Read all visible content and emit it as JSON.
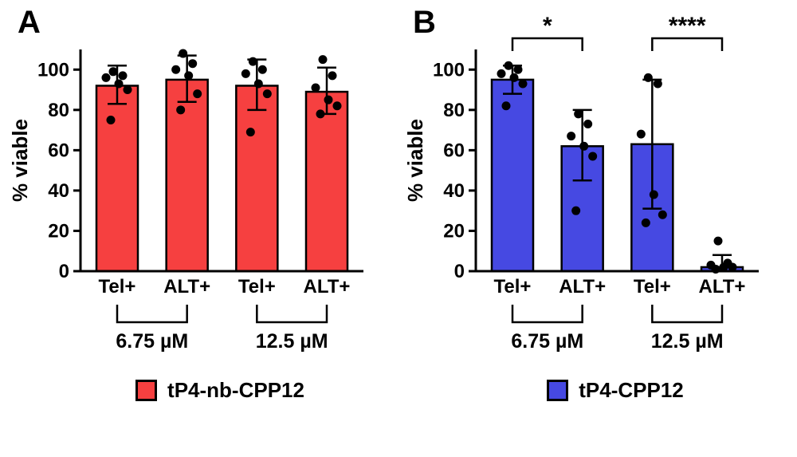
{
  "figure": {
    "background": "#ffffff"
  },
  "chart_data": [
    {
      "type": "bar",
      "panel": "A",
      "title": "",
      "xlabel": "",
      "ylabel": "% viable",
      "ylim": [
        0,
        110
      ],
      "yticks": [
        0,
        20,
        40,
        60,
        80,
        100
      ],
      "grid": false,
      "bar_color": "#f64040",
      "dot_color": "#000000",
      "categories": [
        "Tel+",
        "ALT+",
        "Tel+",
        "ALT+"
      ],
      "bars": [
        {
          "category": "Tel+",
          "group": "6.75 µM",
          "mean": 92,
          "err_low": 83,
          "err_high": 102,
          "points": [
            99,
            97,
            96,
            93,
            90,
            75
          ]
        },
        {
          "category": "ALT+",
          "group": "6.75 µM",
          "mean": 95,
          "err_low": 84,
          "err_high": 107,
          "points": [
            108,
            103,
            100,
            97,
            88,
            80
          ]
        },
        {
          "category": "Tel+",
          "group": "12.5 µM",
          "mean": 92,
          "err_low": 80,
          "err_high": 105,
          "points": [
            104,
            100,
            98,
            93,
            88,
            69
          ]
        },
        {
          "category": "ALT+",
          "group": "12.5 µM",
          "mean": 89,
          "err_low": 78,
          "err_high": 101,
          "points": [
            105,
            97,
            91,
            85,
            82,
            78
          ]
        }
      ],
      "groups": [
        {
          "label": "6.75 µM",
          "from": 0,
          "to": 1
        },
        {
          "label": "12.5 µM",
          "from": 2,
          "to": 3
        }
      ],
      "significance": [],
      "legend": {
        "label": "tP4-nb-CPP12",
        "color": "#f64040",
        "position": "bottom"
      }
    },
    {
      "type": "bar",
      "panel": "B",
      "title": "",
      "xlabel": "",
      "ylabel": "% viable",
      "ylim": [
        0,
        110
      ],
      "yticks": [
        0,
        20,
        40,
        60,
        80,
        100
      ],
      "grid": false,
      "bar_color": "#4649e2",
      "dot_color": "#000000",
      "categories": [
        "Tel+",
        "ALT+",
        "Tel+",
        "ALT+"
      ],
      "bars": [
        {
          "category": "Tel+",
          "group": "6.75 µM",
          "mean": 95,
          "err_low": 88,
          "err_high": 102,
          "points": [
            102,
            100,
            98,
            96,
            93,
            82
          ]
        },
        {
          "category": "ALT+",
          "group": "6.75 µM",
          "mean": 62,
          "err_low": 45,
          "err_high": 80,
          "points": [
            78,
            73,
            67,
            62,
            57,
            30
          ]
        },
        {
          "category": "Tel+",
          "group": "12.5 µM",
          "mean": 63,
          "err_low": 31,
          "err_high": 95,
          "points": [
            96,
            93,
            68,
            38,
            28,
            24
          ]
        },
        {
          "category": "ALT+",
          "group": "12.5 µM",
          "mean": 2,
          "err_low": 0,
          "err_high": 8,
          "points": [
            15,
            4,
            3,
            2,
            2,
            1
          ]
        }
      ],
      "groups": [
        {
          "label": "6.75 µM",
          "from": 0,
          "to": 1
        },
        {
          "label": "12.5 µM",
          "from": 2,
          "to": 3
        }
      ],
      "significance": [
        {
          "from": 0,
          "to": 1,
          "stars": "*"
        },
        {
          "from": 2,
          "to": 3,
          "stars": "****"
        }
      ],
      "legend": {
        "label": "tP4-CPP12",
        "color": "#4649e2",
        "position": "bottom"
      }
    }
  ]
}
